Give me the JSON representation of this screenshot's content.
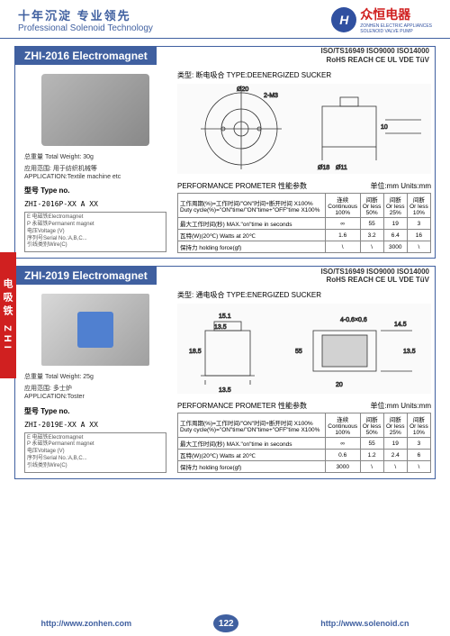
{
  "header": {
    "tagline_cn": "十年沉淀  专业领先",
    "tagline_en": "Professional Solenoid Technology",
    "logo_letter": "H",
    "company_cn": "众恒电器",
    "company_en": "ZONHEN ELECTRIC APPLIANCES",
    "company_sub": "SOLENOID VALVE PUMP"
  },
  "sidebar": "电吸铁 ZHI",
  "products": [
    {
      "title": "ZHI-2016  Electromagnet",
      "certs_line1": "ISO/TS16949  ISO9000  ISO14000",
      "certs_line2": "RoHS  REACH  CE  UL  VDE  TüV",
      "type_label": "类型: 断电吸合 TYPE:DEENERGIZED SUCKER",
      "weight": "总重量 Total Weight: 30g",
      "application": "应用范围: 用于纺织机械等\nAPPLICATION:Textile machine etc",
      "type_no_label": "型号 Type no.",
      "part_no": "ZHI-2016P-XX A XX",
      "bracket": "E 电磁铁Electromagnet\nP 永磁铁Permanent magnet\n电压Voltage (V)\n序列号Serial No.:A,B,C...\n引线类别Wire(C)",
      "perf_label": "PERFORMANCE PROMETER 性能参数",
      "units": "单位:mm  Units:mm",
      "table": {
        "row1_l": "工作周期(%)=工作时间/\"ON\"时间+断开时间 X100%\nDuty cycle(%)=\"ON\"time/\"ON\"time+\"OFF\"time X100%",
        "headers": [
          "连续\nContinuous\n100%",
          "间断\nOr less\n50%",
          "间断\nOr less\n25%",
          "间断\nOr less\n10%"
        ],
        "rows": [
          {
            "label": "最大工作时间(秒) MAX.\"on\"time in seconds",
            "v": [
              "∞",
              "55",
              "19",
              "3"
            ]
          },
          {
            "label": "瓦特(W)(20℃) Watts at 20℃",
            "v": [
              "1.6",
              "3.2",
              "6.4",
              "16"
            ]
          },
          {
            "label": "保持力 holding force(gf)",
            "v": [
              "\\",
              "\\",
              "3000",
              "\\"
            ]
          }
        ]
      }
    },
    {
      "title": "ZHI-2019 Electromagnet",
      "certs_line1": "ISO/TS16949  ISO9000  ISO14000",
      "certs_line2": "RoHS  REACH  CE  UL  VDE  TüV",
      "type_label": "类型: 通电吸合 TYPE:ENERGIZED SUCKER",
      "weight": "总重量 Total Weight: 25g",
      "application": "应用范围: 多士炉\nAPPLICATION:Toster",
      "type_no_label": "型号 Type no.",
      "part_no": "ZHI-2019E-XX A XX",
      "bracket": "E 电磁铁Electromagnet\nP 永磁铁Permanent magnet\n电压Voltage (V)\n序列号Serial No.:A,B,C...\n引线类别Wire(C)",
      "perf_label": "PERFORMANCE PROMETER 性能参数",
      "units": "单位:mm  Units:mm",
      "table": {
        "row1_l": "工作周期(%)=工作时间/\"ON\"时间+断开时间 X100%\nDuty cycle(%)=\"ON\"time/\"ON\"time+\"OFF\"time X100%",
        "headers": [
          "连续\nContinuous\n100%",
          "间断\nOr less\n50%",
          "间断\nOr less\n25%",
          "间断\nOr less\n10%"
        ],
        "rows": [
          {
            "label": "最大工作时间(秒) MAX.\"on\"time in seconds",
            "v": [
              "∞",
              "55",
              "19",
              "3"
            ]
          },
          {
            "label": "瓦特(W)(20℃) Watts at 20℃",
            "v": [
              "0.6",
              "1.2",
              "2.4",
              "6"
            ]
          },
          {
            "label": "保持力 holding force(gf)",
            "v": [
              "3000",
              "\\",
              "\\",
              "\\"
            ]
          }
        ]
      }
    }
  ],
  "footer": {
    "url1": "http://www.zonhen.com",
    "page": "122",
    "url2": "http://www.solenoid.cn"
  }
}
